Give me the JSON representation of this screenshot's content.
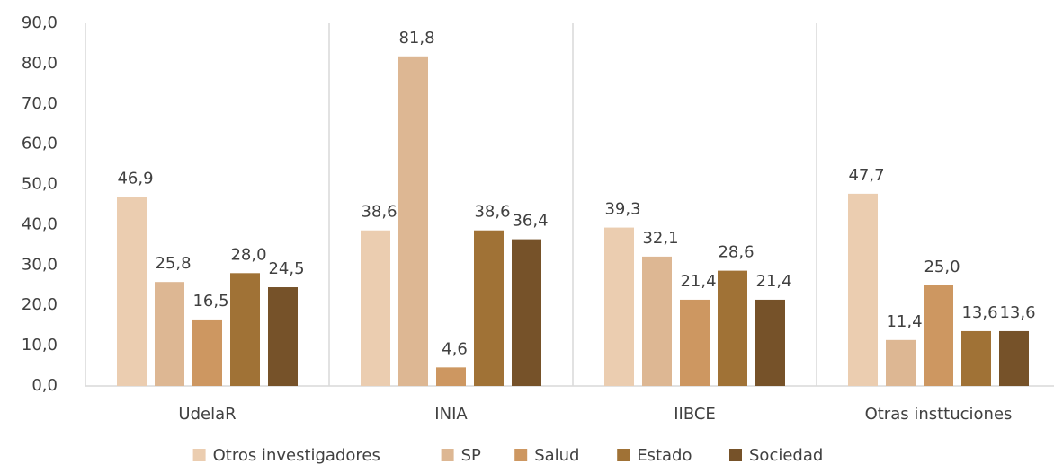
{
  "chart_data": {
    "type": "bar",
    "categories": [
      "UdelaR",
      "INIA",
      "IIBCE",
      "Otras insttuciones"
    ],
    "series": [
      {
        "name": "Otros investigadores",
        "color": "#ebcdb0",
        "values": [
          46.9,
          38.6,
          39.3,
          47.7
        ],
        "value_labels": [
          "46,9",
          "38,6",
          "39,3",
          "47,7"
        ]
      },
      {
        "name": "SP",
        "color": "#ddb793",
        "values": [
          25.8,
          81.8,
          32.1,
          11.4
        ],
        "value_labels": [
          "25,8",
          "81,8",
          "32,1",
          "11,4"
        ]
      },
      {
        "name": "Salud",
        "color": "#cd9761",
        "values": [
          16.5,
          4.6,
          21.4,
          25.0
        ],
        "value_labels": [
          "16,5",
          "4,6",
          "21,4",
          "25,0"
        ]
      },
      {
        "name": "Estado",
        "color": "#a07236",
        "values": [
          28.0,
          38.6,
          28.6,
          13.6
        ],
        "value_labels": [
          "28,0",
          "38,6",
          "28,6",
          "13,6"
        ]
      },
      {
        "name": "Sociedad",
        "color": "#765229",
        "values": [
          24.5,
          36.4,
          21.4,
          13.6
        ],
        "value_labels": [
          "24,5",
          "36,4",
          "21,4",
          "13,6"
        ]
      }
    ],
    "ylim": [
      0,
      90
    ],
    "yticks": [
      {
        "value": 0,
        "label": "0,0"
      },
      {
        "value": 10,
        "label": "10,0"
      },
      {
        "value": 20,
        "label": "20,0"
      },
      {
        "value": 30,
        "label": "30,0"
      },
      {
        "value": 40,
        "label": "40,0"
      },
      {
        "value": 50,
        "label": "50,0"
      },
      {
        "value": 60,
        "label": "60,0"
      },
      {
        "value": 70,
        "label": "70,0"
      },
      {
        "value": 80,
        "label": "80,0"
      },
      {
        "value": 90,
        "label": "90,0"
      }
    ],
    "legend": "bottom"
  }
}
